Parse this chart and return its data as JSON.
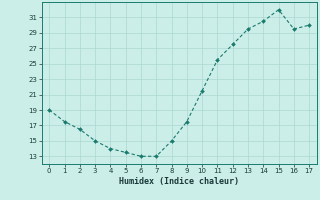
{
  "x": [
    0,
    1,
    2,
    3,
    4,
    5,
    6,
    7,
    8,
    9,
    10,
    11,
    12,
    13,
    14,
    15,
    16,
    17
  ],
  "y": [
    19,
    17.5,
    16.5,
    15,
    14,
    13.5,
    13,
    13,
    15,
    17.5,
    21.5,
    25.5,
    27.5,
    29.5,
    30.5,
    32,
    29.5,
    30
  ],
  "line_color": "#1a7a6e",
  "marker_color": "#1a7a6e",
  "bg_color": "#cceee8",
  "grid_color": "#aad8d0",
  "xlabel": "Humidex (Indice chaleur)",
  "yticks": [
    13,
    15,
    17,
    19,
    21,
    23,
    25,
    27,
    29,
    31
  ],
  "xticks": [
    0,
    1,
    2,
    3,
    4,
    5,
    6,
    7,
    8,
    9,
    10,
    11,
    12,
    13,
    14,
    15,
    16,
    17
  ],
  "ylim": [
    12.0,
    33.0
  ],
  "xlim": [
    -0.5,
    17.5
  ]
}
